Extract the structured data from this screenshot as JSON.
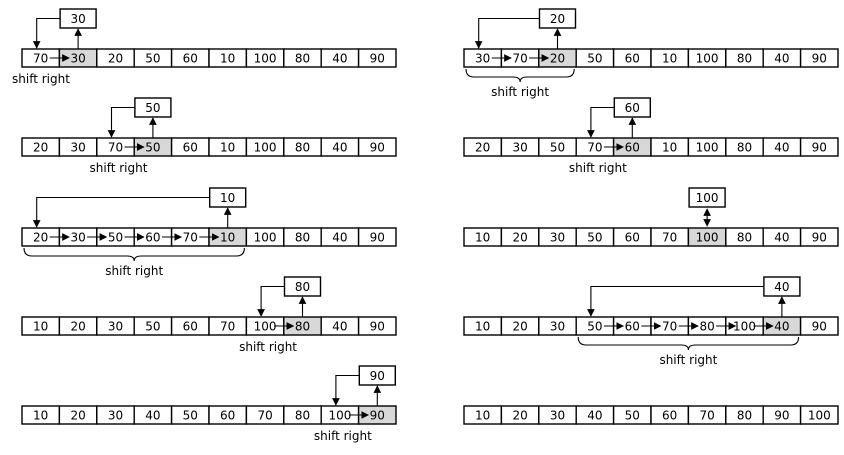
{
  "steps": [
    {
      "values": [
        "70",
        "30",
        "20",
        "50",
        "60",
        "10",
        "100",
        "80",
        "40",
        "90"
      ],
      "key": "30",
      "key_index": 1,
      "shift_from": 0,
      "label": "shift right",
      "label_style": "plain"
    },
    {
      "values": [
        "30",
        "70",
        "20",
        "50",
        "60",
        "10",
        "100",
        "80",
        "40",
        "90"
      ],
      "key": "20",
      "key_index": 2,
      "shift_from": 0,
      "label": "shift right",
      "label_style": "brace"
    },
    {
      "values": [
        "20",
        "30",
        "70",
        "50",
        "60",
        "10",
        "100",
        "80",
        "40",
        "90"
      ],
      "key": "50",
      "key_index": 3,
      "shift_from": 2,
      "label": "shift right",
      "label_style": "plain"
    },
    {
      "values": [
        "20",
        "30",
        "50",
        "70",
        "60",
        "10",
        "100",
        "80",
        "40",
        "90"
      ],
      "key": "60",
      "key_index": 4,
      "shift_from": 3,
      "label": "shift right",
      "label_style": "plain"
    },
    {
      "values": [
        "20",
        "30",
        "50",
        "60",
        "70",
        "10",
        "100",
        "80",
        "40",
        "90"
      ],
      "key": "10",
      "key_index": 5,
      "shift_from": 0,
      "label": "shift right",
      "label_style": "brace"
    },
    {
      "values": [
        "10",
        "20",
        "30",
        "50",
        "60",
        "70",
        "100",
        "80",
        "40",
        "90"
      ],
      "key": "100",
      "key_index": 6,
      "shift_from": 6,
      "label": "",
      "label_style": "none"
    },
    {
      "values": [
        "10",
        "20",
        "30",
        "50",
        "60",
        "70",
        "100",
        "80",
        "40",
        "90"
      ],
      "key": "80",
      "key_index": 7,
      "shift_from": 6,
      "label": "shift right",
      "label_style": "plain"
    },
    {
      "values": [
        "10",
        "20",
        "30",
        "50",
        "60",
        "70",
        "80",
        "100",
        "40",
        "90"
      ],
      "key": "40",
      "key_index": 8,
      "shift_from": 3,
      "label": "shift right",
      "label_style": "brace"
    },
    {
      "values": [
        "10",
        "20",
        "30",
        "40",
        "50",
        "60",
        "70",
        "80",
        "100",
        "90"
      ],
      "key": "90",
      "key_index": 9,
      "shift_from": 8,
      "label": "shift right",
      "label_style": "plain"
    },
    {
      "values": [
        "10",
        "20",
        "30",
        "40",
        "50",
        "60",
        "70",
        "80",
        "90",
        "100"
      ],
      "key": "",
      "key_index": -1,
      "shift_from": -1,
      "label": "",
      "label_style": "none"
    }
  ]
}
